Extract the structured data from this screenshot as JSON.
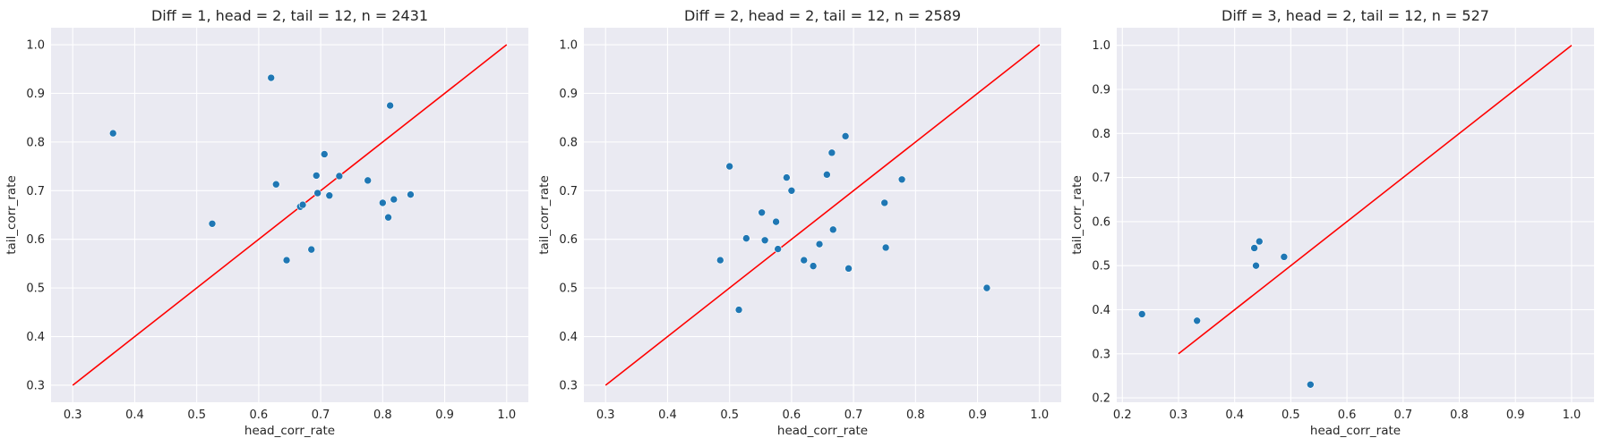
{
  "chart_data": [
    {
      "type": "scatter",
      "title": "Diff = 1, head = 2, tail = 12, n = 2431",
      "xlabel": "head_corr_rate",
      "ylabel": "tail_corr_rate",
      "xlim": [
        0.265,
        1.035
      ],
      "ylim": [
        0.265,
        1.035
      ],
      "xticks": [
        "0.3",
        "0.4",
        "0.5",
        "0.6",
        "0.7",
        "0.8",
        "0.9",
        "1.0"
      ],
      "yticks": [
        "0.3",
        "0.4",
        "0.5",
        "0.6",
        "0.7",
        "0.8",
        "0.9",
        "1.0"
      ],
      "grid": true,
      "background": "#eaeaf2",
      "point_color": "#1f77b4",
      "reference_line": {
        "x": [
          0.3,
          1.0
        ],
        "y": [
          0.3,
          1.0
        ],
        "color": "#ff0000"
      },
      "points": [
        {
          "x": 0.365,
          "y": 0.818
        },
        {
          "x": 0.525,
          "y": 0.632
        },
        {
          "x": 0.62,
          "y": 0.932
        },
        {
          "x": 0.628,
          "y": 0.713
        },
        {
          "x": 0.645,
          "y": 0.557
        },
        {
          "x": 0.667,
          "y": 0.667
        },
        {
          "x": 0.671,
          "y": 0.671
        },
        {
          "x": 0.685,
          "y": 0.579
        },
        {
          "x": 0.693,
          "y": 0.731
        },
        {
          "x": 0.695,
          "y": 0.695
        },
        {
          "x": 0.706,
          "y": 0.775
        },
        {
          "x": 0.714,
          "y": 0.69
        },
        {
          "x": 0.73,
          "y": 0.73
        },
        {
          "x": 0.776,
          "y": 0.721
        },
        {
          "x": 0.8,
          "y": 0.675
        },
        {
          "x": 0.809,
          "y": 0.645
        },
        {
          "x": 0.812,
          "y": 0.875
        },
        {
          "x": 0.818,
          "y": 0.682
        },
        {
          "x": 0.845,
          "y": 0.692
        }
      ]
    },
    {
      "type": "scatter",
      "title": "Diff = 2, head = 2, tail = 12, n = 2589",
      "xlabel": "head_corr_rate",
      "ylabel": "tail_corr_rate",
      "xlim": [
        0.265,
        1.035
      ],
      "ylim": [
        0.265,
        1.035
      ],
      "xticks": [
        "0.3",
        "0.4",
        "0.5",
        "0.6",
        "0.7",
        "0.8",
        "0.9",
        "1.0"
      ],
      "yticks": [
        "0.3",
        "0.4",
        "0.5",
        "0.6",
        "0.7",
        "0.8",
        "0.9",
        "1.0"
      ],
      "grid": true,
      "background": "#eaeaf2",
      "point_color": "#1f77b4",
      "reference_line": {
        "x": [
          0.3,
          1.0
        ],
        "y": [
          0.3,
          1.0
        ],
        "color": "#ff0000"
      },
      "points": [
        {
          "x": 0.485,
          "y": 0.557
        },
        {
          "x": 0.5,
          "y": 0.75
        },
        {
          "x": 0.515,
          "y": 0.455
        },
        {
          "x": 0.527,
          "y": 0.602
        },
        {
          "x": 0.552,
          "y": 0.655
        },
        {
          "x": 0.557,
          "y": 0.598
        },
        {
          "x": 0.575,
          "y": 0.636
        },
        {
          "x": 0.578,
          "y": 0.58
        },
        {
          "x": 0.592,
          "y": 0.727
        },
        {
          "x": 0.6,
          "y": 0.7
        },
        {
          "x": 0.62,
          "y": 0.557
        },
        {
          "x": 0.635,
          "y": 0.545
        },
        {
          "x": 0.645,
          "y": 0.59
        },
        {
          "x": 0.657,
          "y": 0.733
        },
        {
          "x": 0.665,
          "y": 0.778
        },
        {
          "x": 0.667,
          "y": 0.62
        },
        {
          "x": 0.687,
          "y": 0.812
        },
        {
          "x": 0.692,
          "y": 0.54
        },
        {
          "x": 0.75,
          "y": 0.675
        },
        {
          "x": 0.752,
          "y": 0.583
        },
        {
          "x": 0.778,
          "y": 0.723
        },
        {
          "x": 0.915,
          "y": 0.5
        }
      ]
    },
    {
      "type": "scatter",
      "title": "Diff = 3, head = 2, tail = 12, n = 527",
      "xlabel": "head_corr_rate",
      "ylabel": "tail_corr_rate",
      "xlim": [
        0.19,
        1.04
      ],
      "ylim": [
        0.19,
        1.04
      ],
      "xticks": [
        "0.2",
        "0.3",
        "0.4",
        "0.5",
        "0.6",
        "0.7",
        "0.8",
        "0.9",
        "1.0"
      ],
      "yticks": [
        "0.2",
        "0.3",
        "0.4",
        "0.5",
        "0.6",
        "0.7",
        "0.8",
        "0.9",
        "1.0"
      ],
      "grid": true,
      "background": "#eaeaf2",
      "point_color": "#1f77b4",
      "reference_line": {
        "x": [
          0.3,
          1.0
        ],
        "y": [
          0.3,
          1.0
        ],
        "color": "#ff0000"
      },
      "points": [
        {
          "x": 0.235,
          "y": 0.39
        },
        {
          "x": 0.333,
          "y": 0.375
        },
        {
          "x": 0.435,
          "y": 0.54
        },
        {
          "x": 0.438,
          "y": 0.5
        },
        {
          "x": 0.444,
          "y": 0.555
        },
        {
          "x": 0.488,
          "y": 0.52
        },
        {
          "x": 0.535,
          "y": 0.23
        }
      ]
    }
  ]
}
